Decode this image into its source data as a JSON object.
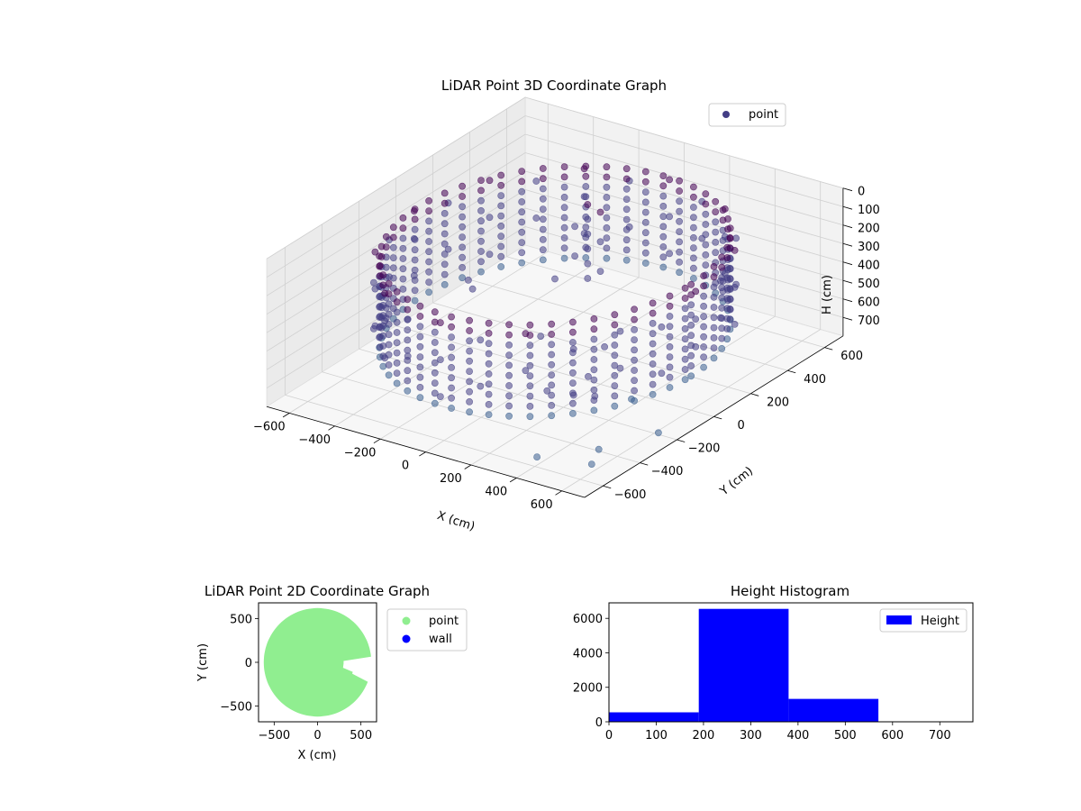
{
  "colors": {
    "point3d": "#433e85",
    "point3d_dark": "#440154",
    "point3d_light": "#3b5f8f",
    "point2d": "#90ee90",
    "wall": "#0000ff",
    "hist": "#0000ff"
  },
  "chart_data": [
    {
      "type": "scatter",
      "projection": "3d",
      "title": "LiDAR Point 3D Coordinate Graph",
      "xlabel": "X (cm)",
      "ylabel": "Y (cm)",
      "zlabel": "H (cm)",
      "xlim": [
        -700,
        700
      ],
      "ylim": [
        -700,
        700
      ],
      "zlim": [
        800,
        0
      ],
      "xticks": [
        "−600",
        "−400",
        "−200",
        "0",
        "200",
        "400",
        "600"
      ],
      "yticks": [
        "−600",
        "−400",
        "−200",
        "0",
        "200",
        "400",
        "600"
      ],
      "zticks": [
        "0",
        "100",
        "200",
        "300",
        "400",
        "500",
        "600",
        "700"
      ],
      "grid": true,
      "legend": {
        "position": "top-right",
        "entries": [
          "point"
        ]
      },
      "series": [
        {
          "name": "point",
          "description_shape": "ring of points around origin, radius about 550-650 cm, heights 100-650 cm, with a dense vertical column near (-100, 300)",
          "points": [
            [
              620,
              0,
              150
            ],
            [
              620,
              0,
              300
            ],
            [
              620,
              0,
              450
            ],
            [
              600,
              160,
              200
            ],
            [
              600,
              160,
              400
            ],
            [
              540,
              310,
              150
            ],
            [
              540,
              310,
              350
            ],
            [
              540,
              310,
              550
            ],
            [
              440,
              440,
              200
            ],
            [
              440,
              440,
              450
            ],
            [
              310,
              540,
              150
            ],
            [
              310,
              540,
              300
            ],
            [
              310,
              540,
              500
            ],
            [
              160,
              600,
              200
            ],
            [
              160,
              600,
              400
            ],
            [
              0,
              620,
              150
            ],
            [
              0,
              620,
              350
            ],
            [
              0,
              620,
              550
            ],
            [
              -160,
              600,
              200
            ],
            [
              -160,
              600,
              450
            ],
            [
              -310,
              540,
              150
            ],
            [
              -310,
              540,
              300
            ],
            [
              -310,
              540,
              500
            ],
            [
              -440,
              440,
              200
            ],
            [
              -440,
              440,
              400
            ],
            [
              -540,
              310,
              150
            ],
            [
              -540,
              310,
              350
            ],
            [
              -540,
              310,
              550
            ],
            [
              -600,
              160,
              200
            ],
            [
              -600,
              160,
              450
            ],
            [
              -620,
              0,
              150
            ],
            [
              -620,
              0,
              300
            ],
            [
              -620,
              0,
              500
            ],
            [
              -600,
              -160,
              200
            ],
            [
              -600,
              -160,
              400
            ],
            [
              -540,
              -310,
              150
            ],
            [
              -540,
              -310,
              350
            ],
            [
              -540,
              -310,
              550
            ],
            [
              -440,
              -440,
              200
            ],
            [
              -440,
              -440,
              450
            ],
            [
              -310,
              -540,
              150
            ],
            [
              -310,
              -540,
              300
            ],
            [
              -310,
              -540,
              500
            ],
            [
              -160,
              -600,
              200
            ],
            [
              -160,
              -600,
              400
            ],
            [
              0,
              -620,
              150
            ],
            [
              0,
              -620,
              350
            ],
            [
              0,
              -620,
              550
            ],
            [
              160,
              -600,
              200
            ],
            [
              160,
              -600,
              450
            ],
            [
              310,
              -540,
              150
            ],
            [
              310,
              -540,
              350
            ],
            [
              440,
              -440,
              250
            ],
            [
              440,
              -440,
              500
            ],
            [
              540,
              -310,
              200
            ],
            [
              540,
              -310,
              400
            ],
            [
              600,
              -160,
              250
            ],
            [
              600,
              -160,
              500
            ],
            [
              -100,
              300,
              120
            ],
            [
              -100,
              300,
              200
            ],
            [
              -100,
              300,
              280
            ],
            [
              -100,
              300,
              360
            ],
            [
              -100,
              300,
              440
            ],
            [
              -100,
              300,
              520
            ],
            [
              -60,
              320,
              160
            ],
            [
              -60,
              320,
              320
            ],
            [
              -60,
              320,
              480
            ],
            [
              -140,
              280,
              240
            ],
            [
              -140,
              280,
              400
            ],
            [
              300,
              -100,
              500
            ],
            [
              350,
              -250,
              550
            ],
            [
              420,
              -300,
              600
            ],
            [
              500,
              -200,
              650
            ],
            [
              250,
              -350,
              600
            ],
            [
              600,
              -500,
              700
            ],
            [
              700,
              -300,
              700
            ],
            [
              450,
              -650,
              700
            ],
            [
              650,
              -600,
              700
            ],
            [
              -200,
              -200,
              300
            ],
            [
              -300,
              -100,
              350
            ],
            [
              100,
              -200,
              450
            ],
            [
              0,
              0,
              300
            ]
          ]
        }
      ]
    },
    {
      "type": "scatter",
      "title": "LiDAR Point 2D Coordinate Graph",
      "xlabel": "X (cm)",
      "ylabel": "Y (cm)",
      "xlim": [
        -680,
        680
      ],
      "ylim": [
        -680,
        680
      ],
      "xticks": [
        -500,
        0,
        500
      ],
      "yticks": [
        -500,
        0,
        500
      ],
      "legend": {
        "position": "outside-right",
        "entries": [
          "point",
          "wall"
        ]
      },
      "series": [
        {
          "name": "point",
          "region": "filled disc radius ~620 cm centered at origin, clipped to axes, with a notch near x 300 to 680, y -150 to 50"
        },
        {
          "name": "wall",
          "points": []
        }
      ]
    },
    {
      "type": "bar",
      "subtype": "histogram",
      "title": "Height Histogram",
      "xlim": [
        0,
        770
      ],
      "ylim": [
        0,
        6900
      ],
      "xticks": [
        0,
        100,
        200,
        300,
        400,
        500,
        600,
        700
      ],
      "yticks": [
        0,
        2000,
        4000,
        6000
      ],
      "legend": {
        "position": "top-right",
        "entries": [
          "Height"
        ]
      },
      "series": [
        {
          "name": "Height",
          "bins": [
            {
              "start": 0,
              "end": 190,
              "count": 550
            },
            {
              "start": 190,
              "end": 380,
              "count": 6550
            },
            {
              "start": 380,
              "end": 570,
              "count": 1330
            },
            {
              "start": 570,
              "end": 760,
              "count": 0
            }
          ]
        }
      ]
    }
  ]
}
